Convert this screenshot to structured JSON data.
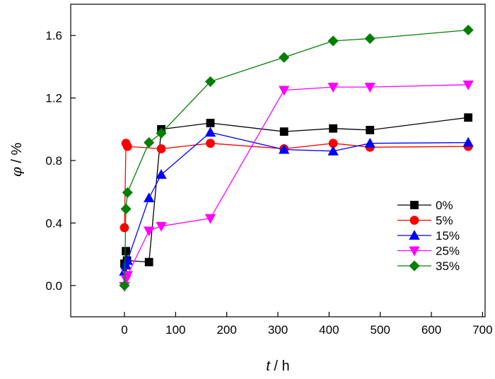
{
  "chart_data": {
    "type": "line",
    "title": "",
    "xlabel_var": "t",
    "xlabel_unit": " / h",
    "ylabel_var": "φ",
    "ylabel_unit": " / %",
    "xlim": [
      -105,
      705
    ],
    "ylim": [
      -0.2,
      1.8
    ],
    "xticks": [
      0,
      100,
      200,
      300,
      400,
      500,
      600,
      700
    ],
    "yticks": [
      0.0,
      0.4,
      0.8,
      1.2,
      1.6
    ],
    "ytick_labels": [
      "0.0",
      "0.4",
      "0.8",
      "1.2",
      "1.6"
    ],
    "legend_position": "bottom-right",
    "series": [
      {
        "name": "0%",
        "color": "#000000",
        "marker": "square",
        "points": [
          [
            0,
            0.14
          ],
          [
            3,
            0.22
          ],
          [
            5,
            0.16
          ],
          [
            48,
            0.15
          ],
          [
            72,
            1.0
          ],
          [
            168,
            1.04
          ],
          [
            312,
            0.985
          ],
          [
            408,
            1.005
          ],
          [
            480,
            0.995
          ],
          [
            672,
            1.075
          ]
        ]
      },
      {
        "name": "5%",
        "color": "#ff0000",
        "marker": "circle",
        "points": [
          [
            0,
            0.37
          ],
          [
            3,
            0.91
          ],
          [
            6,
            0.89
          ],
          [
            72,
            0.875
          ],
          [
            168,
            0.91
          ],
          [
            312,
            0.875
          ],
          [
            408,
            0.91
          ],
          [
            480,
            0.885
          ],
          [
            672,
            0.89
          ]
        ]
      },
      {
        "name": "15%",
        "color": "#0000ff",
        "marker": "triangle-up",
        "points": [
          [
            0,
            0.09
          ],
          [
            3,
            0.13
          ],
          [
            6,
            0.16
          ],
          [
            48,
            0.56
          ],
          [
            72,
            0.71
          ],
          [
            168,
            0.98
          ],
          [
            312,
            0.87
          ],
          [
            408,
            0.86
          ],
          [
            480,
            0.91
          ],
          [
            672,
            0.915
          ]
        ]
      },
      {
        "name": "25%",
        "color": "#ff00ff",
        "marker": "triangle-down",
        "points": [
          [
            0,
            -0.005
          ],
          [
            3,
            0.04
          ],
          [
            6,
            0.065
          ],
          [
            48,
            0.35
          ],
          [
            72,
            0.38
          ],
          [
            168,
            0.43
          ],
          [
            312,
            1.25
          ],
          [
            408,
            1.27
          ],
          [
            480,
            1.27
          ],
          [
            672,
            1.285
          ]
        ]
      },
      {
        "name": "35%",
        "color": "#008000",
        "marker": "diamond",
        "points": [
          [
            0,
            0.0
          ],
          [
            3,
            0.49
          ],
          [
            6,
            0.595
          ],
          [
            48,
            0.915
          ],
          [
            72,
            0.975
          ],
          [
            168,
            1.305
          ],
          [
            312,
            1.46
          ],
          [
            408,
            1.565
          ],
          [
            480,
            1.58
          ],
          [
            672,
            1.635
          ]
        ]
      }
    ]
  }
}
